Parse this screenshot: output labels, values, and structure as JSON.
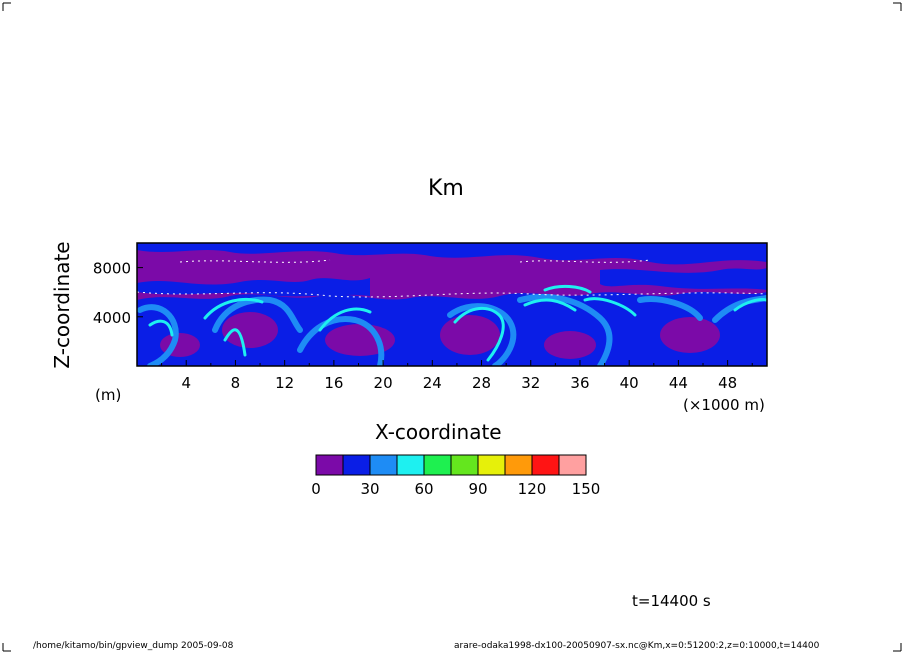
{
  "chart_data": {
    "type": "heatmap",
    "title": "Km",
    "xlabel": "X-coordinate",
    "ylabel": "Z-coordinate",
    "x_unit": "(×1000 m)",
    "y_unit": "(m)",
    "x_ticks": [
      "4",
      "8",
      "12",
      "16",
      "20",
      "24",
      "28",
      "32",
      "36",
      "40",
      "44",
      "48"
    ],
    "y_ticks": [
      "4000",
      "8000"
    ],
    "xlim": [
      0,
      51.2
    ],
    "ylim": [
      0,
      10000
    ],
    "colorbar": {
      "levels": [
        "0",
        "30",
        "60",
        "90",
        "120",
        "150"
      ],
      "bins": [
        {
          "from": 0,
          "to": 15,
          "color": "#7b0aa8"
        },
        {
          "from": 15,
          "to": 30,
          "color": "#0a1ee6"
        },
        {
          "from": 30,
          "to": 45,
          "color": "#1e8cf5"
        },
        {
          "from": 45,
          "to": 60,
          "color": "#1ef0f0"
        },
        {
          "from": 60,
          "to": 75,
          "color": "#1ef050"
        },
        {
          "from": 75,
          "to": 90,
          "color": "#64e61e"
        },
        {
          "from": 90,
          "to": 105,
          "color": "#e6f00a"
        },
        {
          "from": 105,
          "to": 120,
          "color": "#ff9a0a"
        },
        {
          "from": 120,
          "to": 135,
          "color": "#ff1414"
        },
        {
          "from": 135,
          "to": 150,
          "color": "#ffa0a0"
        }
      ]
    }
  },
  "time_label": "t=14400 s",
  "footer": {
    "left": "/home/kitamo/bin/gpview_dump  2005-09-08",
    "right": "arare-odaka1998-dx100-20050907-sx.nc@Km,x=0:51200:2,z=0:10000,t=14400"
  }
}
